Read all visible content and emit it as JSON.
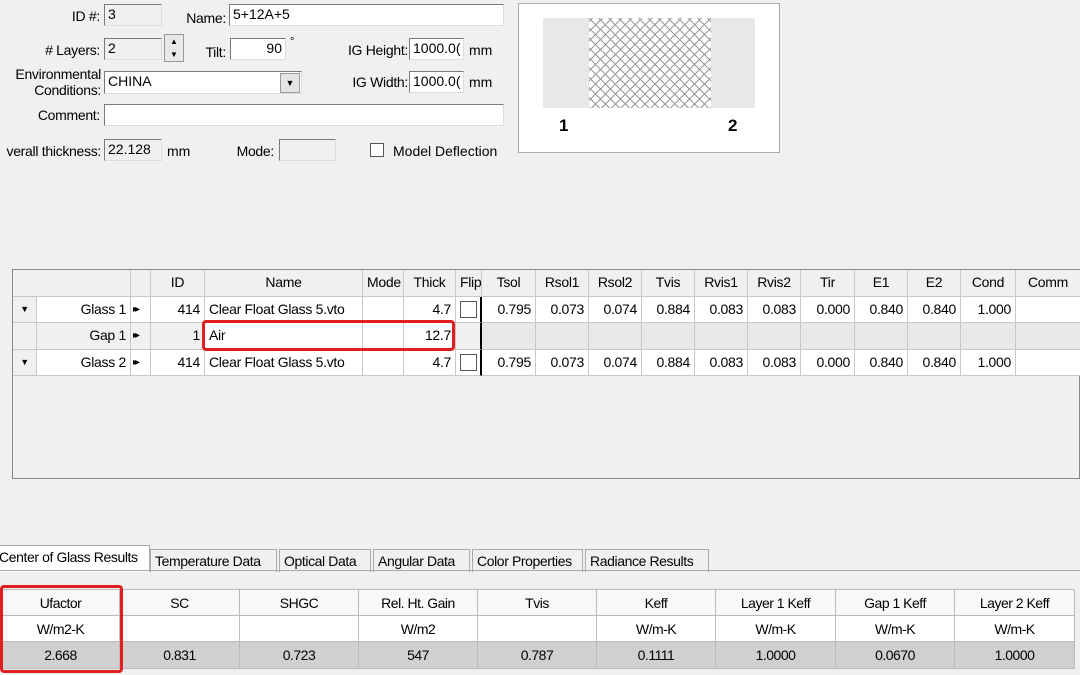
{
  "form": {
    "id_label": "ID #:",
    "id_value": "3",
    "name_label": "Name:",
    "name_value": "5+12A+5",
    "layers_label": "# Layers:",
    "layers_value": "2",
    "tilt_label": "Tilt:",
    "tilt_value": "90",
    "tilt_unit": "°",
    "ig_height_label": "IG Height:",
    "ig_height_value": "1000.0(",
    "ig_height_unit": "mm",
    "ig_width_label": "IG Width:",
    "ig_width_value": "1000.0(",
    "ig_width_unit": "mm",
    "env_label_1": "Environmental",
    "env_label_2": "Conditions:",
    "env_value": "CHINA",
    "comment_label": "Comment:",
    "comment_value": "",
    "thickness_label": "verall thickness:",
    "thickness_value": "22.128",
    "thickness_unit": "mm",
    "mode_label": "Mode:",
    "mode_value": "",
    "model_deflection_label": "Model Deflection",
    "model_deflection_checked": false
  },
  "preview": {
    "left_label": "1",
    "right_label": "2"
  },
  "layers_grid": {
    "columns": [
      "",
      "",
      "ID",
      "Name",
      "Mode",
      "Thick",
      "Flip",
      "Tsol",
      "Rsol1",
      "Rsol2",
      "Tvis",
      "Rvis1",
      "Rvis2",
      "Tir",
      "E1",
      "E2",
      "Cond",
      "Comm"
    ],
    "rows": [
      {
        "dropdown": true,
        "label": "Glass 1",
        "arrows": "▸▸",
        "id": "414",
        "name": "Clear Float Glass 5.vto",
        "mode": "",
        "thick": "4.7",
        "flip": false,
        "vals": [
          "0.795",
          "0.073",
          "0.074",
          "0.884",
          "0.083",
          "0.083",
          "0.000",
          "0.840",
          "0.840",
          "1.000",
          ""
        ]
      },
      {
        "dropdown": false,
        "label": "Gap 1",
        "arrows": "▸▸",
        "id": "1",
        "name": "Air",
        "mode": "",
        "thick": "12.7",
        "flip": null,
        "vals": []
      },
      {
        "dropdown": true,
        "label": "Glass 2",
        "arrows": "▸▸",
        "id": "414",
        "name": "Clear Float Glass 5.vto",
        "mode": "",
        "thick": "4.7",
        "flip": false,
        "vals": [
          "0.795",
          "0.073",
          "0.074",
          "0.884",
          "0.083",
          "0.083",
          "0.000",
          "0.840",
          "0.840",
          "1.000",
          ""
        ]
      }
    ]
  },
  "tabs": [
    "Center of Glass Results",
    "Temperature Data",
    "Optical Data",
    "Angular Data",
    "Color Properties",
    "Radiance Results"
  ],
  "active_tab": 0,
  "results": {
    "headers": [
      "Ufactor",
      "SC",
      "SHGC",
      "Rel. Ht. Gain",
      "Tvis",
      "Keff",
      "Layer 1 Keff",
      "Gap 1 Keff",
      "Layer 2 Keff"
    ],
    "units": [
      "W/m2-K",
      "",
      "",
      "W/m2",
      "",
      "W/m-K",
      "W/m-K",
      "W/m-K",
      "W/m-K"
    ],
    "values": [
      "2.668",
      "0.831",
      "0.723",
      "547",
      "0.787",
      "0.1111",
      "1.0000",
      "0.0670",
      "1.0000"
    ]
  },
  "highlight_color": "#e02020"
}
